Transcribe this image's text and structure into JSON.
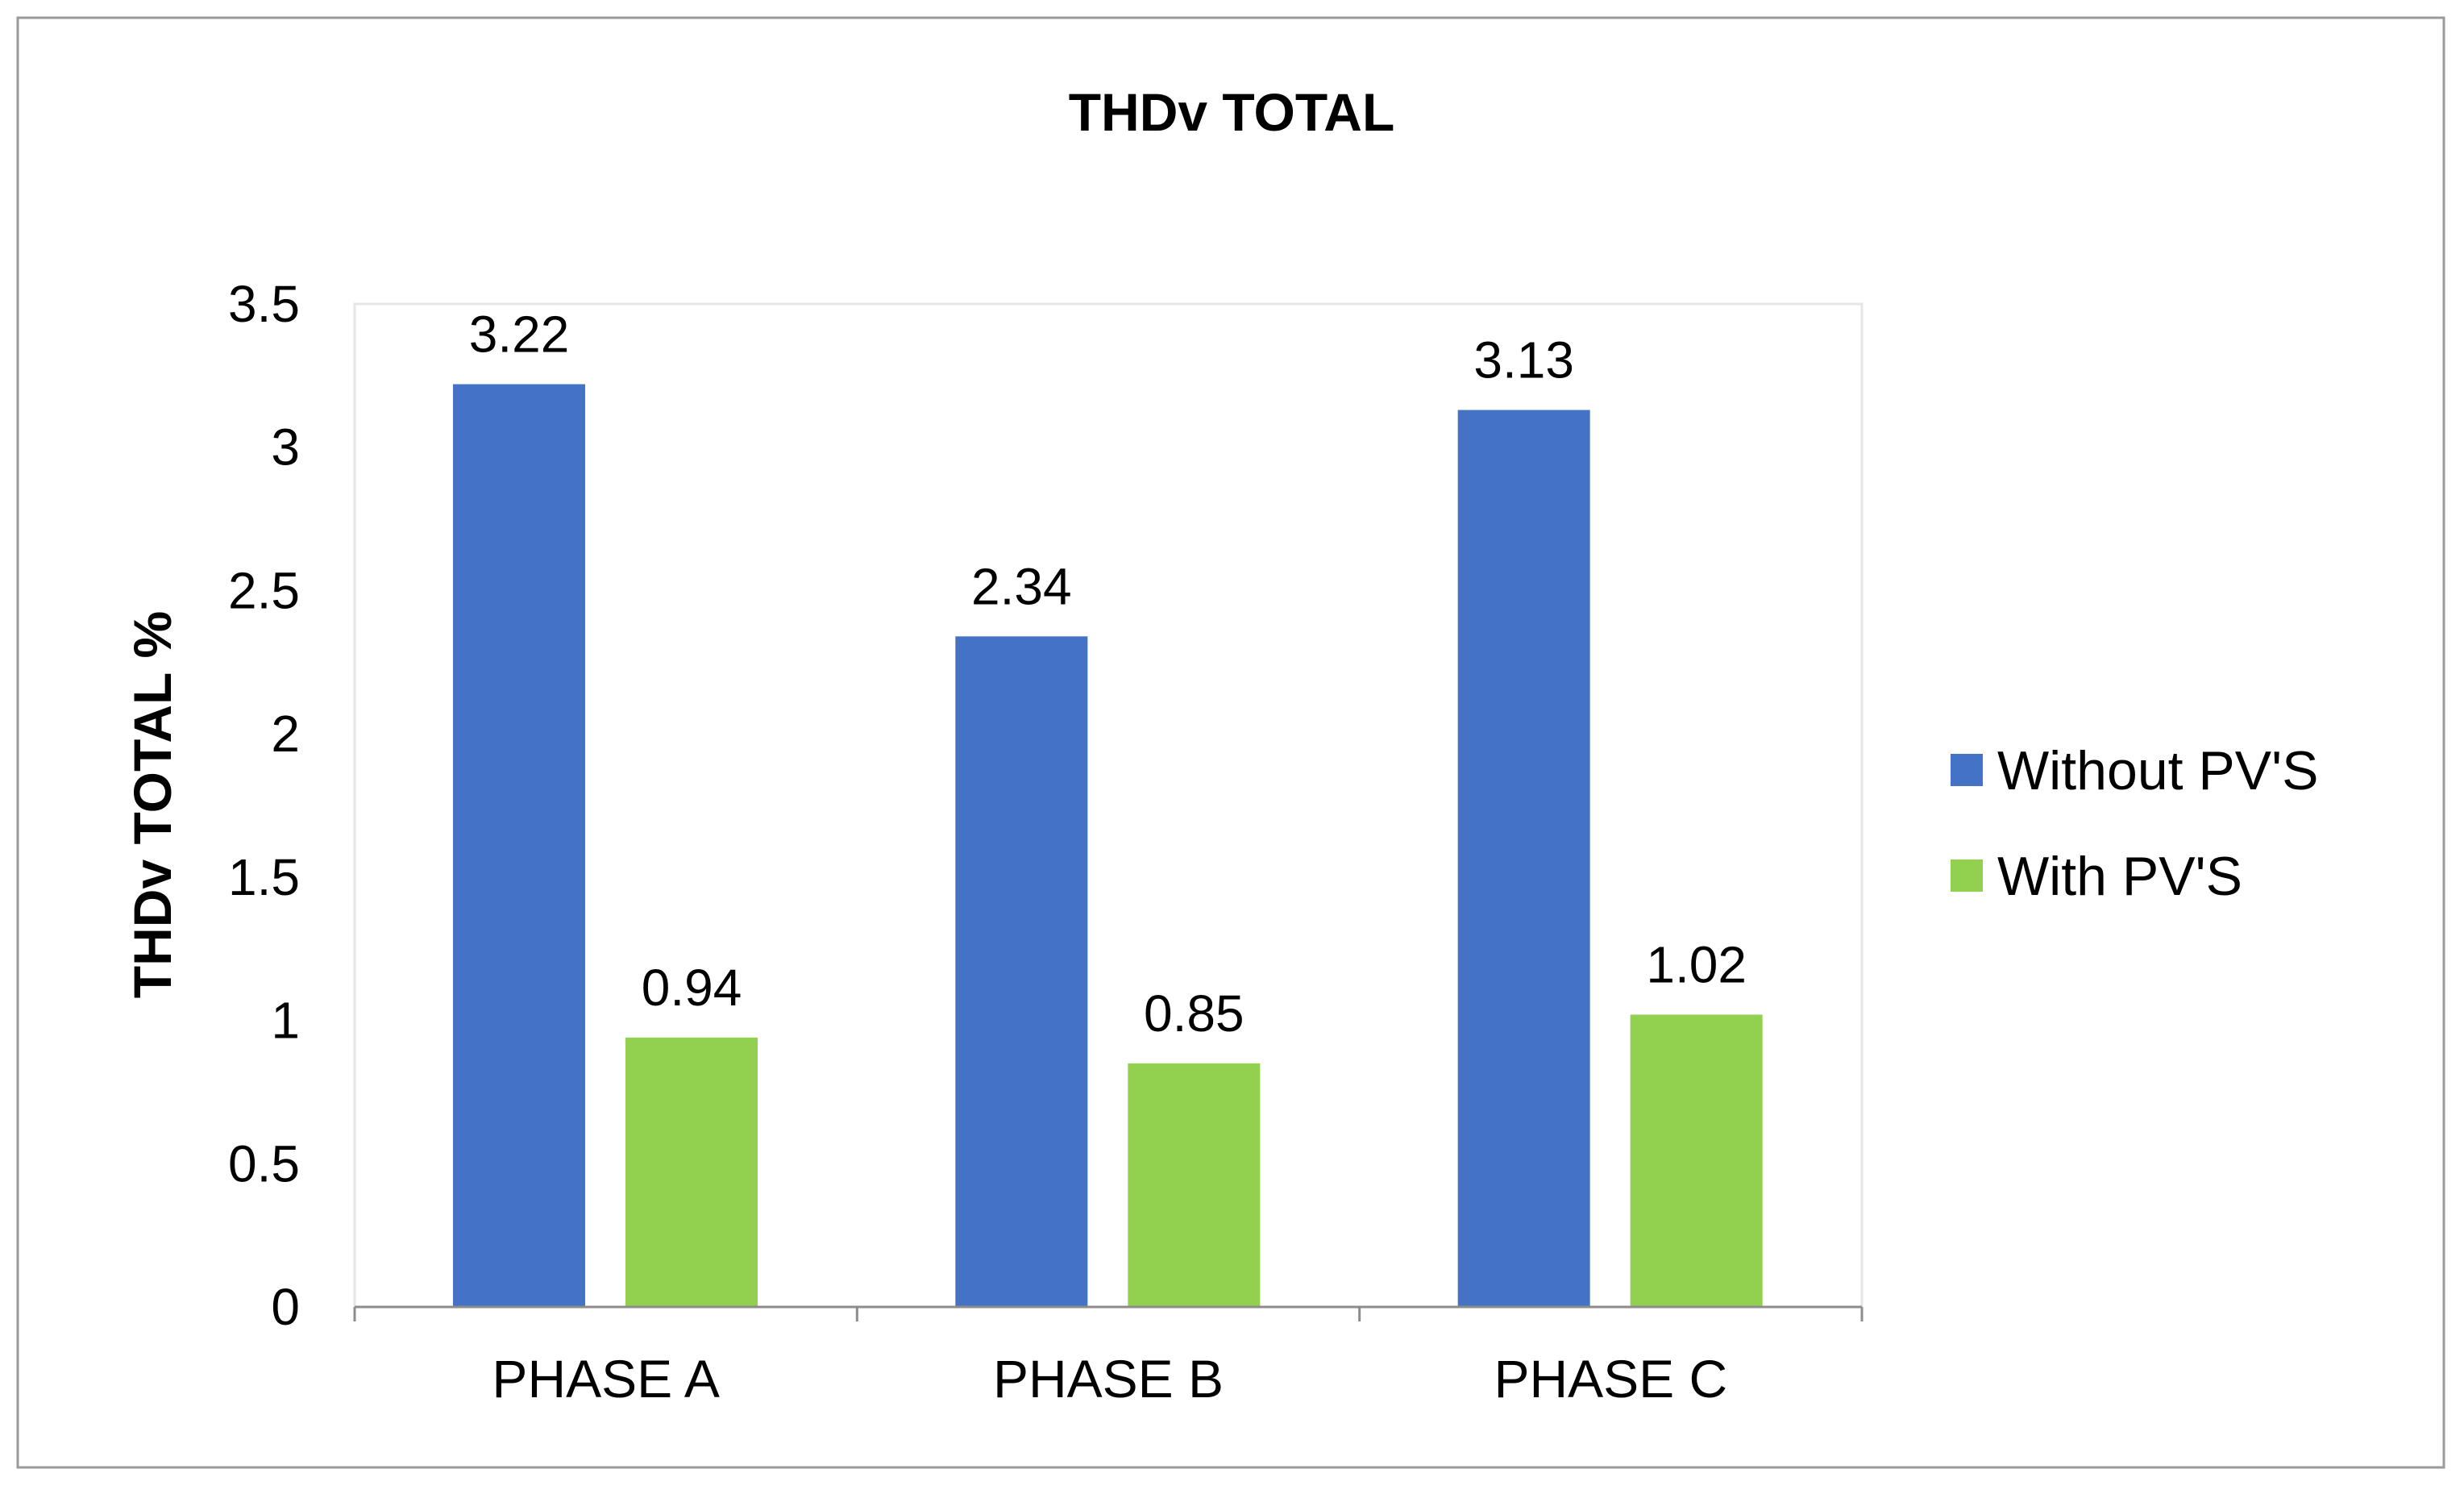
{
  "chart_data": {
    "type": "bar",
    "title": "THDv TOTAL",
    "xlabel": "",
    "ylabel": "THDv TOTAL %",
    "categories": [
      "PHASE A",
      "PHASE B",
      "PHASE C"
    ],
    "series": [
      {
        "name": "Without PV'S",
        "color": "#4472C4",
        "values": [
          3.22,
          2.34,
          3.13
        ],
        "labels": [
          "3.22",
          "2.34",
          "3.13"
        ]
      },
      {
        "name": "With PV'S",
        "color": "#92D050",
        "values": [
          0.94,
          0.85,
          1.02
        ],
        "labels": [
          "0.94",
          "0.85",
          "1.02"
        ]
      }
    ],
    "ylim": [
      0,
      3.5
    ],
    "yticks": [
      0,
      0.5,
      1,
      1.5,
      2,
      2.5,
      3,
      3.5
    ],
    "ytick_labels": [
      "0",
      "0.5",
      "1",
      "1.5",
      "2",
      "2.5",
      "3",
      "3.5"
    ],
    "grid": false,
    "legend_position": "right"
  }
}
